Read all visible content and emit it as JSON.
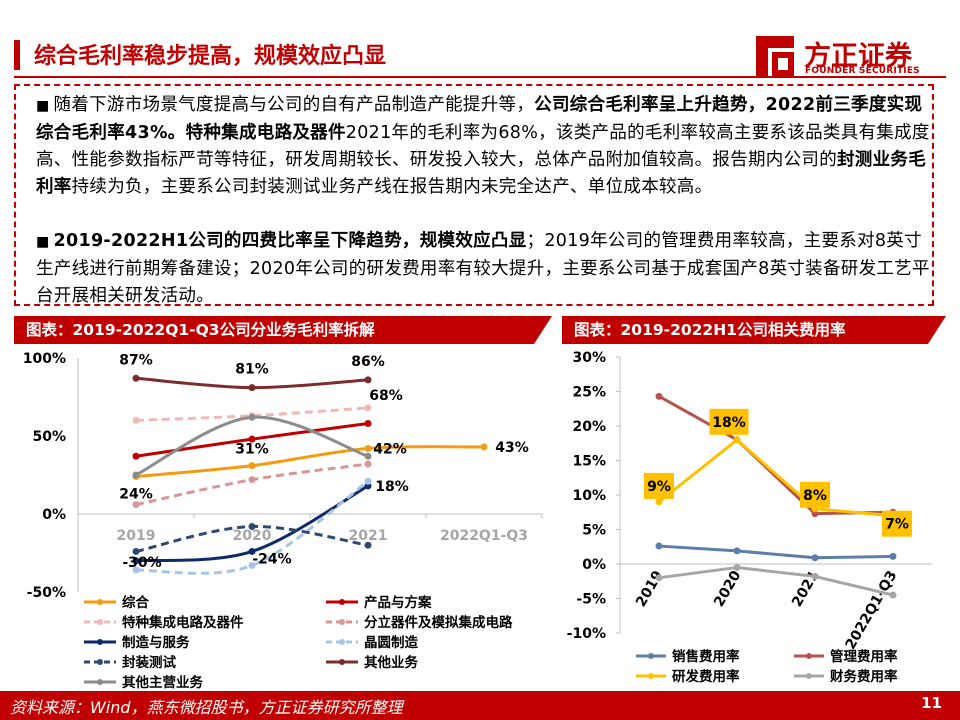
{
  "header": {
    "title": "综合毛利率稳步提高，规模效应凸显",
    "logo_text": "方正证券",
    "logo_sub": "FOUNDER SECURITIES"
  },
  "summary": {
    "p1": [
      {
        "t": "随着下游市场景气度提高与公司的自有产品制造产能提升等，",
        "b": false
      },
      {
        "t": "公司综合毛利率呈上升趋势，2022前三季度实现综合毛利率43%。特种集成电路及器件",
        "b": true
      },
      {
        "t": "2021年的毛利率为68%，该类产品的毛利率较高主要系该品类具有集成度高、性能参数指标严苛等特征，研发周期较长、研发投入较大，总体产品附加值较高。报告期内公司的",
        "b": false
      },
      {
        "t": "封测业务毛利率",
        "b": true
      },
      {
        "t": "持续为负，主要系公司封装测试业务产线在报告期内未完全达产、单位成本较高。",
        "b": false
      }
    ],
    "p2": [
      {
        "t": "2019-2022H1公司的四费比率呈下降趋势，规模效应凸显",
        "b": true
      },
      {
        "t": "；2019年公司的管理费用率较高，主要系对8英寸生产线进行前期筹备建设；2020年公司的研发费用率有较大提升，主要系公司基于成套国产8英寸装备研发工艺平台开展相关研发活动。",
        "b": false
      }
    ]
  },
  "footer": {
    "source": "资料来源：Wind，燕东微招股书，方正证券研究所整理",
    "page_number": "11"
  },
  "chart_data": [
    {
      "type": "line",
      "title": "图表：2019-2022Q1-Q3公司分业务毛利率拆解",
      "categories": [
        "2019",
        "2020",
        "2021",
        "2022Q1-Q3"
      ],
      "ylim": [
        -50,
        100
      ],
      "yticks": [
        "100%",
        "50%",
        "0%",
        "-50%"
      ],
      "series": [
        {
          "name": "综合",
          "color": "#f39c12",
          "dash": "",
          "values": [
            24,
            31,
            42,
            43
          ]
        },
        {
          "name": "产品与方案",
          "color": "#c00000",
          "dash": "",
          "values": [
            37,
            48,
            58,
            null
          ]
        },
        {
          "name": "特种集成电路及器件",
          "color": "#f2b8b8",
          "dash": "8 5",
          "values": [
            60,
            63,
            68,
            null
          ]
        },
        {
          "name": "分立器件及模拟集成电路",
          "color": "#d99694",
          "dash": "8 5",
          "values": [
            6,
            22,
            32,
            null
          ]
        },
        {
          "name": "制造与服务",
          "color": "#0d2b6b",
          "dash": "",
          "values": [
            -30,
            -24,
            18,
            null
          ]
        },
        {
          "name": "晶圆制造",
          "color": "#a9c4e8",
          "dash": "8 5",
          "values": [
            -36,
            -33,
            21,
            null
          ]
        },
        {
          "name": "封装测试",
          "color": "#2c4a72",
          "dash": "8 5",
          "values": [
            -24,
            -8,
            -20,
            null
          ]
        },
        {
          "name": "其他业务",
          "color": "#7b2c2c",
          "dash": "",
          "values": [
            87,
            81,
            86,
            null
          ]
        },
        {
          "name": "其他主营业务",
          "color": "#8c8c8c",
          "dash": "",
          "values": [
            25,
            62,
            37,
            null
          ]
        }
      ],
      "data_labels": [
        {
          "text": "87%",
          "series": 7,
          "index": 0
        },
        {
          "text": "81%",
          "series": 7,
          "index": 1
        },
        {
          "text": "86%",
          "series": 7,
          "index": 2
        },
        {
          "text": "68%",
          "series": 2,
          "index": 2
        },
        {
          "text": "42%",
          "series": 0,
          "index": 2
        },
        {
          "text": "43%",
          "series": 0,
          "index": 3
        },
        {
          "text": "24%",
          "series": 0,
          "index": 0
        },
        {
          "text": "31%",
          "series": 0,
          "index": 1
        },
        {
          "text": "18%",
          "series": 4,
          "index": 2
        },
        {
          "text": "-30%",
          "series": 4,
          "index": 0
        },
        {
          "text": "-24%",
          "series": 4,
          "index": 1
        }
      ]
    },
    {
      "type": "line",
      "title": "图表：2019-2022H1公司相关费用率",
      "categories": [
        "2019",
        "2020",
        "2021",
        "2022Q1-Q3"
      ],
      "ylim": [
        -10,
        30
      ],
      "yticks": [
        "30%",
        "25%",
        "20%",
        "15%",
        "10%",
        "5%",
        "0%",
        "-5%",
        "-10%"
      ],
      "series": [
        {
          "name": "销售费用率",
          "color": "#5b7fa6",
          "values": [
            2.6,
            1.9,
            0.9,
            1.1
          ]
        },
        {
          "name": "管理费用率",
          "color": "#b5524e",
          "values": [
            24.3,
            18,
            7.3,
            7.5
          ]
        },
        {
          "name": "研发费用率",
          "color": "#ffc000",
          "values": [
            9,
            18,
            8,
            7
          ]
        },
        {
          "name": "财务费用率",
          "color": "#a6a6a6",
          "values": [
            -2,
            -0.5,
            -1.8,
            -4.5
          ]
        }
      ],
      "data_labels": [
        {
          "text": "9%",
          "series": 2,
          "index": 0
        },
        {
          "text": "18%",
          "series": 2,
          "index": 1
        },
        {
          "text": "8%",
          "series": 2,
          "index": 2
        },
        {
          "text": "7%",
          "series": 2,
          "index": 3
        }
      ]
    }
  ]
}
